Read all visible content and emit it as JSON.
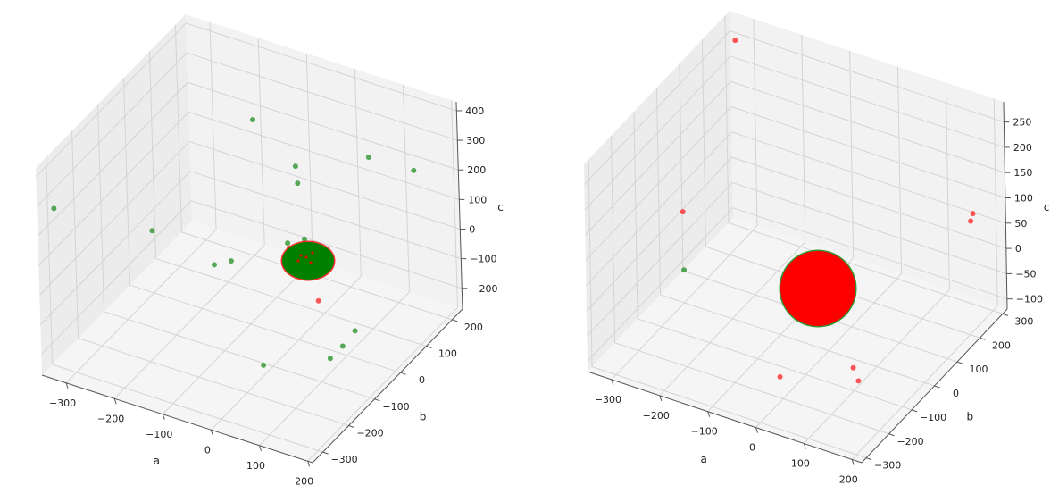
{
  "colors": {
    "green": "#008000",
    "red": "#ff0000",
    "pane": "#f2f2f2",
    "pane_dark": "#e6e6e6"
  },
  "chart_data": [
    {
      "type": "scatter",
      "projection": "3d",
      "xlabel": "a",
      "ylabel": "b",
      "zlabel": "c",
      "xlim": [
        -350,
        210
      ],
      "ylim": [
        -340,
        240
      ],
      "zlim": [
        -270,
        430
      ],
      "xticks": [
        -300,
        -200,
        -100,
        0,
        100,
        200
      ],
      "yticks": [
        -300,
        -200,
        -100,
        0,
        100,
        200
      ],
      "zticks": [
        -200,
        -100,
        0,
        100,
        200,
        300,
        400
      ],
      "grid": true,
      "cluster": {
        "color": "green",
        "label": "dense spherical cluster near origin"
      },
      "series": [
        {
          "color": "green",
          "points": [
            [
              -320,
              -330,
              300
            ],
            [
              -200,
              210,
              180
            ],
            [
              -80,
              150,
              140
            ],
            [
              -60,
              120,
              120
            ],
            [
              40,
              210,
              180
            ],
            [
              150,
              180,
              220
            ],
            [
              -300,
              0,
              -60
            ],
            [
              -150,
              -40,
              -60
            ],
            [
              -120,
              -30,
              -40
            ],
            [
              -40,
              40,
              0
            ],
            [
              -10,
              50,
              20
            ],
            [
              140,
              -40,
              -130
            ],
            [
              130,
              -70,
              -160
            ],
            [
              120,
              -100,
              -180
            ],
            [
              30,
              -190,
              -170
            ]
          ]
        },
        {
          "color": "red",
          "points": [
            [
              -20,
              10,
              20
            ],
            [
              60,
              -30,
              -80
            ]
          ]
        }
      ]
    },
    {
      "type": "scatter",
      "projection": "3d",
      "xlabel": "a",
      "ylabel": "b",
      "zlabel": "c",
      "xlim": [
        -350,
        220
      ],
      "ylim": [
        -320,
        320
      ],
      "zlim": [
        -120,
        290
      ],
      "xticks": [
        -300,
        -200,
        -100,
        0,
        100,
        200
      ],
      "yticks": [
        -300,
        -200,
        -100,
        0,
        100,
        200,
        300
      ],
      "zticks": [
        -100,
        -50,
        0,
        50,
        100,
        150,
        200,
        250
      ],
      "grid": true,
      "cluster": {
        "color": "red",
        "label": "dense spherical cluster near origin"
      },
      "series": [
        {
          "color": "green",
          "points": [
            [
              -280,
              -40,
              -30
            ]
          ]
        },
        {
          "color": "red",
          "points": [
            [
              -320,
              280,
              260
            ],
            [
              -300,
              0,
              60
            ],
            [
              200,
              220,
              110
            ],
            [
              200,
              210,
              100
            ],
            [
              80,
              -60,
              -100
            ],
            [
              100,
              -80,
              -110
            ],
            [
              -30,
              -150,
              -110
            ]
          ]
        }
      ]
    }
  ]
}
